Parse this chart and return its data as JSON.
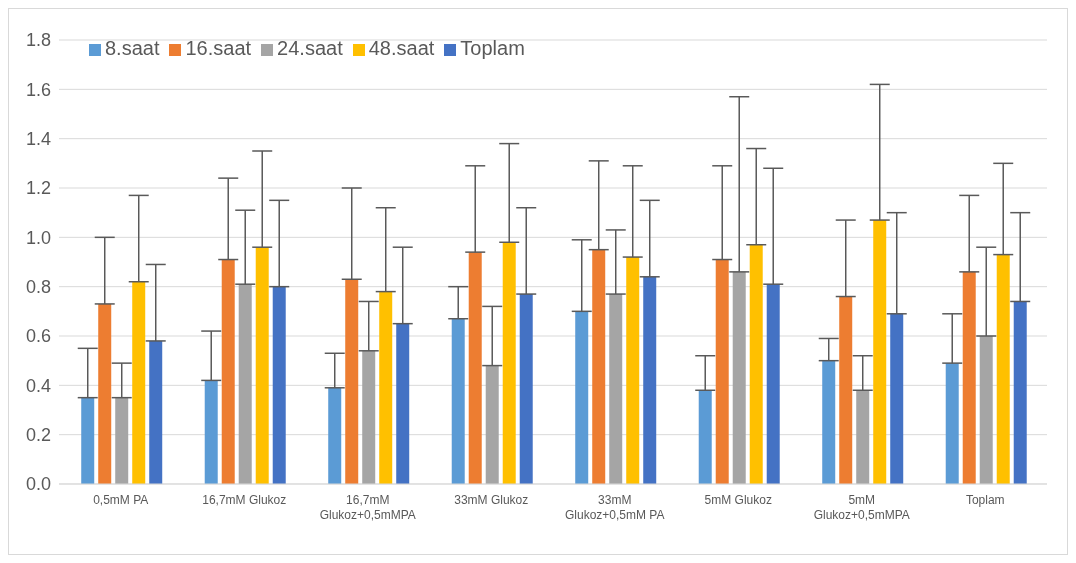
{
  "chart_data": {
    "type": "bar",
    "categories": [
      "0,5mM PA",
      "16,7mM Glukoz",
      "16,7mM Glukoz+0,5mMPA",
      "33mM Glukoz",
      "33mM Glukoz+0,5mM PA",
      "5mM Glukoz",
      "5mM Glukoz+0,5mMPA",
      "Toplam"
    ],
    "series": [
      {
        "name": "8.saat",
        "color": "#5b9bd5",
        "values": [
          0.35,
          0.42,
          0.39,
          0.67,
          0.7,
          0.38,
          0.5,
          0.49
        ],
        "errors": [
          [
            0.35,
            0.55
          ],
          [
            0.42,
            0.62
          ],
          [
            0.39,
            0.53
          ],
          [
            0.67,
            0.8
          ],
          [
            0.7,
            0.99
          ],
          [
            0.38,
            0.52
          ],
          [
            0.5,
            0.59
          ],
          [
            0.49,
            0.69
          ]
        ]
      },
      {
        "name": "16.saat",
        "color": "#ed7d31",
        "values": [
          0.73,
          0.91,
          0.83,
          0.94,
          0.95,
          0.91,
          0.76,
          0.86
        ],
        "errors": [
          [
            0.73,
            1.0
          ],
          [
            0.91,
            1.24
          ],
          [
            0.83,
            1.2
          ],
          [
            0.94,
            1.29
          ],
          [
            0.95,
            1.31
          ],
          [
            0.91,
            1.29
          ],
          [
            0.76,
            1.07
          ],
          [
            0.86,
            1.17
          ]
        ]
      },
      {
        "name": "24.saat",
        "color": "#a5a5a5",
        "values": [
          0.35,
          0.81,
          0.54,
          0.48,
          0.77,
          0.86,
          0.38,
          0.6
        ],
        "errors": [
          [
            0.35,
            0.49
          ],
          [
            0.81,
            1.11
          ],
          [
            0.54,
            0.74
          ],
          [
            0.48,
            0.72
          ],
          [
            0.77,
            1.03
          ],
          [
            0.86,
            1.57
          ],
          [
            0.38,
            0.52
          ],
          [
            0.6,
            0.96
          ]
        ]
      },
      {
        "name": "48.saat",
        "color": "#ffc000",
        "values": [
          0.82,
          0.96,
          0.78,
          0.98,
          0.92,
          0.97,
          1.07,
          0.93
        ],
        "errors": [
          [
            0.82,
            1.17
          ],
          [
            0.96,
            1.35
          ],
          [
            0.78,
            1.12
          ],
          [
            0.98,
            1.38
          ],
          [
            0.92,
            1.29
          ],
          [
            0.97,
            1.36
          ],
          [
            1.07,
            1.62
          ],
          [
            0.93,
            1.3
          ]
        ]
      },
      {
        "name": "Toplam",
        "color": "#4472c4",
        "values": [
          0.58,
          0.8,
          0.65,
          0.77,
          0.84,
          0.81,
          0.69,
          0.74
        ],
        "errors": [
          [
            0.58,
            0.89
          ],
          [
            0.8,
            1.15
          ],
          [
            0.65,
            0.96
          ],
          [
            0.77,
            1.12
          ],
          [
            0.84,
            1.15
          ],
          [
            0.81,
            1.28
          ],
          [
            0.69,
            1.1
          ],
          [
            0.74,
            1.1
          ]
        ]
      }
    ],
    "ylim": [
      0,
      1.8
    ],
    "yticks": [
      {
        "value": 0,
        "label": "0.0"
      },
      0.2,
      0.4,
      0.6,
      0.8,
      {
        "value": 1,
        "label": "1.0"
      },
      1.2,
      1.4,
      1.6,
      1.8
    ],
    "grid": "y",
    "legend": "top left"
  }
}
